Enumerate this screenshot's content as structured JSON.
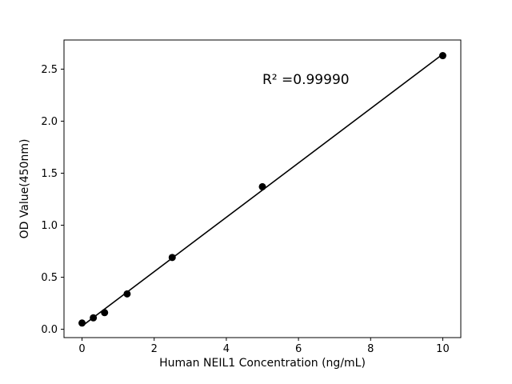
{
  "chart_data": {
    "type": "scatter",
    "title": "",
    "xlabel": "Human NEIL1 Concentration (ng/mL)",
    "ylabel": "OD Value(450nm)",
    "annotation": "R² =0.99990",
    "x": [
      0,
      0.313,
      0.625,
      1.25,
      2.5,
      5,
      10
    ],
    "y": [
      0.06,
      0.11,
      0.16,
      0.34,
      0.69,
      1.37,
      2.63
    ],
    "fit_line": true,
    "xticks": [
      0,
      2,
      4,
      6,
      8,
      10
    ],
    "xtick_labels": [
      "0",
      "2",
      "4",
      "6",
      "8",
      "10"
    ],
    "yticks": [
      0.0,
      0.5,
      1.0,
      1.5,
      2.0,
      2.5
    ],
    "ytick_labels": [
      "0.0",
      "0.5",
      "1.0",
      "1.5",
      "2.0",
      "2.5"
    ],
    "xlim": [
      -0.5,
      10.5
    ],
    "ylim": [
      -0.08,
      2.78
    ],
    "grid": false,
    "legend": "none",
    "marker_color": "#000000",
    "line_color": "#000000",
    "background": "#ffffff"
  }
}
